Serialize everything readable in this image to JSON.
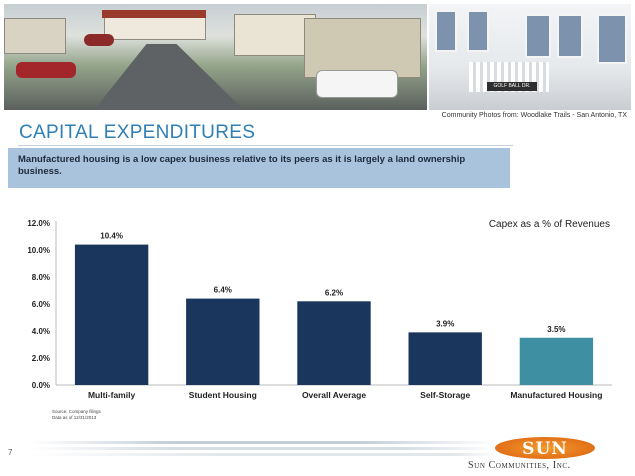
{
  "header": {
    "photo_credit": "Community Photos from: Woodlake Trails - San Antonio, TX",
    "street_sign": "GOLF BALL DR."
  },
  "slide": {
    "title": "CAPITAL EXPENDITURES",
    "callout": "Manufactured housing is a low capex business relative to its peers as it is largely a land ownership business.",
    "page_number": "7"
  },
  "chart_data": {
    "type": "bar",
    "title": "Capex as a % of Revenues",
    "categories": [
      "Multi-family",
      "Student Housing",
      "Overall Average",
      "Self-Storage",
      "Manufactured Housing"
    ],
    "values": [
      10.4,
      6.4,
      6.2,
      3.9,
      3.5
    ],
    "data_labels": [
      "10.4%",
      "6.4%",
      "6.2%",
      "3.9%",
      "3.5%"
    ],
    "ylim": [
      0,
      12
    ],
    "yticks": [
      "0.0%",
      "2.0%",
      "4.0%",
      "6.0%",
      "8.0%",
      "10.0%",
      "12.0%"
    ],
    "grid": false,
    "colors": [
      "#1b365d",
      "#1b365d",
      "#1b365d",
      "#1b365d",
      "#3f8fa3"
    ]
  },
  "footnote": {
    "source": "Source: Company filings",
    "date": "Data as of 12/31/2013"
  },
  "brand": {
    "logo": "SUN",
    "company": "Sun Communities, Inc.",
    "accent": "#2f7fb3",
    "callout_bg": "#a9c3dc"
  }
}
